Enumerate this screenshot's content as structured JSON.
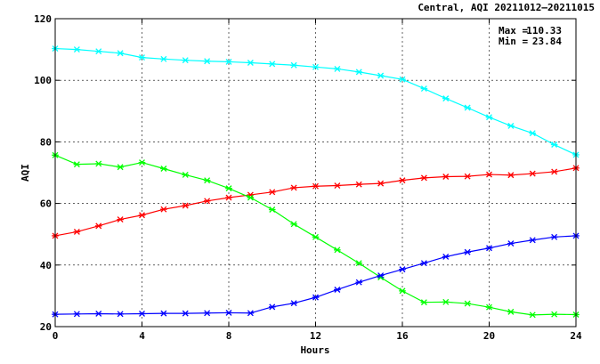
{
  "chart_data": {
    "type": "line",
    "title": "Central, AQI 20211012–20211015",
    "xlabel": "Hours",
    "ylabel": "AQI",
    "xlim": [
      0,
      24
    ],
    "ylim": [
      20,
      120
    ],
    "xticks": [
      "0",
      "4",
      "8",
      "12",
      "16",
      "20",
      "24"
    ],
    "yticks": [
      "20",
      "40",
      "60",
      "80",
      "100",
      "120"
    ],
    "grid": true,
    "legend": "none",
    "stats": {
      "max_label": "Max =",
      "max_value": "110.33",
      "min_label": "Min =",
      "min_value": "23.84"
    },
    "x": [
      0,
      1,
      2,
      3,
      4,
      5,
      6,
      7,
      8,
      9,
      10,
      11,
      12,
      13,
      14,
      15,
      16,
      17,
      18,
      19,
      20,
      21,
      22,
      23,
      24
    ],
    "series": [
      {
        "color": "#00ffff",
        "values": [
          110.3,
          110.0,
          109.4,
          108.8,
          107.4,
          106.9,
          106.5,
          106.2,
          106.0,
          105.7,
          105.3,
          104.9,
          104.3,
          103.7,
          102.7,
          101.5,
          100.3,
          97.3,
          94.1,
          91.1,
          88.0,
          85.2,
          82.8,
          79.1,
          75.8
        ]
      },
      {
        "color": "#ff0000",
        "values": [
          49.5,
          50.8,
          52.7,
          54.8,
          56.2,
          58.1,
          59.3,
          60.8,
          61.9,
          62.8,
          63.7,
          65.1,
          65.6,
          65.8,
          66.2,
          66.5,
          67.5,
          68.3,
          68.7,
          68.8,
          69.4,
          69.2,
          69.7,
          70.3,
          71.5
        ]
      },
      {
        "color": "#00ff00",
        "values": [
          75.7,
          72.7,
          72.9,
          71.8,
          73.3,
          71.3,
          69.3,
          67.5,
          64.9,
          61.9,
          58.0,
          53.3,
          49.1,
          44.9,
          40.6,
          36.0,
          31.6,
          27.9,
          28.0,
          27.5,
          26.3,
          24.8,
          23.8,
          24.0,
          23.9
        ]
      },
      {
        "color": "#0000ff",
        "values": [
          24.0,
          24.1,
          24.2,
          24.1,
          24.2,
          24.3,
          24.3,
          24.4,
          24.5,
          24.4,
          26.4,
          27.6,
          29.5,
          32.0,
          34.4,
          36.6,
          38.6,
          40.6,
          42.7,
          44.2,
          45.5,
          47.0,
          48.1,
          49.1,
          49.5
        ]
      }
    ]
  }
}
